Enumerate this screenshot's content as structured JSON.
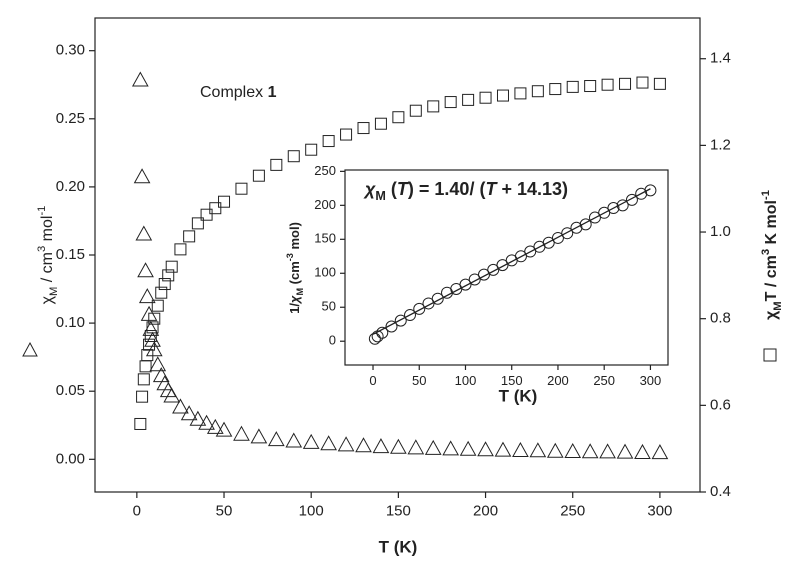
{
  "chart_data": [
    {
      "type": "scatter",
      "x_label": "T (K)",
      "y_label_parts": [
        {
          "text": "χ"
        },
        {
          "text": "M",
          "sub": true
        },
        {
          "text": " / cm"
        },
        {
          "text": "3",
          "sup": true
        },
        {
          "text": " mol"
        },
        {
          "text": "-1",
          "sup": true
        }
      ],
      "y2_label_parts": [
        {
          "text": "χ"
        },
        {
          "text": "M",
          "sub": true
        },
        {
          "text": "T / cm"
        },
        {
          "text": "3",
          "sup": true
        },
        {
          "text": " K mol"
        },
        {
          "text": "-1",
          "sup": true
        }
      ],
      "annotation_parts": [
        {
          "text": "Complex "
        },
        {
          "text": "1",
          "bold": true
        }
      ],
      "xlim": [
        -24,
        323
      ],
      "xticks": [
        0,
        50,
        100,
        150,
        200,
        250,
        300
      ],
      "ylim": [
        -0.024,
        0.324
      ],
      "yticks": [
        {
          "value": 0,
          "label": "0.00"
        },
        {
          "value": 0.05,
          "label": "0.05"
        },
        {
          "value": 0.1,
          "label": "0.10"
        },
        {
          "value": 0.15,
          "label": "0.15"
        },
        {
          "value": 0.2,
          "label": "0.20"
        },
        {
          "value": 0.25,
          "label": "0.25"
        },
        {
          "value": 0.3,
          "label": "0.30"
        }
      ],
      "y2lim": [
        0.4,
        1.494
      ],
      "y2ticks": [
        0.4,
        0.6,
        0.8,
        {
          "value": 1,
          "label": "1.0"
        },
        1.2,
        1.4
      ],
      "x": [
        2,
        3,
        4,
        5,
        6,
        7,
        8,
        9,
        10,
        12,
        14,
        16,
        18,
        20,
        25,
        30,
        35,
        40,
        45,
        50,
        60,
        70,
        80,
        90,
        100,
        110,
        120,
        130,
        140,
        150,
        160,
        170,
        180,
        190,
        200,
        210,
        220,
        230,
        240,
        250,
        260,
        270,
        280,
        290,
        300
      ],
      "series": [
        {
          "marker": "triangle",
          "color": "#222222",
          "axis": "y",
          "values": [
            0.278,
            0.207,
            0.165,
            0.138,
            0.119,
            0.106,
            0.095,
            0.087,
            0.08,
            0.069,
            0.061,
            0.055,
            0.05,
            0.046,
            0.038,
            0.033,
            0.029,
            0.026,
            0.023,
            0.021,
            0.018,
            0.016,
            0.014,
            0.013,
            0.012,
            0.011,
            0.0102,
            0.0095,
            0.0089,
            0.0084,
            0.008,
            0.0076,
            0.0072,
            0.0069,
            0.0066,
            0.0063,
            0.006,
            0.0058,
            0.0055,
            0.0053,
            0.0051,
            0.005,
            0.0048,
            0.0046,
            0.0045
          ]
        },
        {
          "marker": "square",
          "color": "#222222",
          "axis": "y2",
          "values": [
            0.557,
            0.62,
            0.66,
            0.69,
            0.716,
            0.74,
            0.76,
            0.78,
            0.8,
            0.83,
            0.86,
            0.88,
            0.9,
            0.92,
            0.96,
            0.99,
            1.02,
            1.04,
            1.055,
            1.07,
            1.1,
            1.13,
            1.155,
            1.175,
            1.19,
            1.21,
            1.225,
            1.24,
            1.25,
            1.265,
            1.28,
            1.29,
            1.3,
            1.305,
            1.31,
            1.315,
            1.32,
            1.325,
            1.33,
            1.335,
            1.337,
            1.34,
            1.342,
            1.345,
            1.342
          ]
        }
      ]
    },
    {
      "type": "scatter",
      "x_label": "T (K)",
      "y_label_parts": [
        {
          "text": "1/"
        },
        {
          "text": "χ",
          "italic": true
        },
        {
          "text": "M",
          "sub": true
        },
        {
          "text": " (cm"
        },
        {
          "text": "-3",
          "sup": true
        },
        {
          "text": " mol)"
        }
      ],
      "equation_parts": [
        {
          "text": "χ",
          "italic": true
        },
        {
          "text": "M",
          "sub": true
        },
        {
          "text": " ("
        },
        {
          "text": "T",
          "italic": true
        },
        {
          "text": ") = 1.40/ ("
        },
        {
          "text": "T",
          "italic": true
        },
        {
          "text": " + 14.13)"
        }
      ],
      "xlim": [
        -30.3,
        319
      ],
      "xticks": [
        0,
        50,
        100,
        150,
        200,
        250,
        300
      ],
      "ylim": [
        -35,
        252
      ],
      "yticks": [
        0,
        50,
        100,
        150,
        200,
        250
      ],
      "x": [
        2,
        5,
        10,
        20,
        30,
        40,
        50,
        60,
        70,
        80,
        90,
        100,
        110,
        120,
        130,
        140,
        150,
        160,
        170,
        180,
        190,
        200,
        210,
        220,
        230,
        240,
        250,
        260,
        270,
        280,
        290,
        300
      ],
      "series": [
        {
          "marker": "circle",
          "color": "#222222",
          "values": [
            3.6,
            7.2,
            12.5,
            21.7,
            30.3,
            38.5,
            47.6,
            55.6,
            62.5,
            71.4,
            76.9,
            83.3,
            90.9,
            98,
            105,
            112,
            119,
            125,
            132,
            139,
            145,
            152,
            159,
            167,
            172,
            182,
            189,
            196,
            200,
            208,
            217,
            222
          ]
        }
      ],
      "fit": {
        "color": "#222222",
        "x": [
          0,
          300
        ],
        "values": [
          10.1,
          224.4
        ]
      }
    }
  ]
}
